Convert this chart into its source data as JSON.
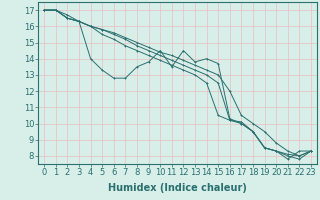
{
  "line1": {
    "x": [
      0,
      1,
      2,
      3,
      4,
      5,
      6,
      7,
      8,
      9,
      10,
      11,
      12,
      13,
      14,
      15,
      16,
      17,
      18,
      19,
      20,
      21,
      22,
      23
    ],
    "y": [
      17,
      17,
      16.7,
      16.3,
      16,
      15.8,
      15.6,
      15.3,
      15.0,
      14.7,
      14.4,
      14.2,
      13.9,
      13.6,
      13.3,
      13.0,
      12.0,
      10.5,
      10.0,
      9.5,
      8.8,
      8.3,
      8.0,
      8.3
    ]
  },
  "line2": {
    "x": [
      0,
      1,
      2,
      3,
      4,
      5,
      6,
      7,
      8,
      9,
      10,
      11,
      12,
      13,
      14,
      15,
      16,
      17,
      18,
      19,
      20,
      21,
      22,
      23
    ],
    "y": [
      17,
      17,
      16.5,
      16.3,
      14.0,
      13.3,
      12.8,
      12.8,
      13.5,
      13.8,
      14.5,
      13.5,
      14.5,
      13.8,
      14.0,
      13.7,
      10.3,
      10.0,
      9.5,
      8.5,
      8.3,
      7.8,
      8.3,
      8.3
    ]
  },
  "line3": {
    "x": [
      0,
      1,
      2,
      3,
      4,
      5,
      6,
      7,
      8,
      9,
      10,
      11,
      12,
      13,
      14,
      15,
      16,
      17,
      18,
      19,
      20,
      21,
      22,
      23
    ],
    "y": [
      17,
      17,
      16.5,
      16.3,
      16.0,
      15.8,
      15.5,
      15.2,
      14.8,
      14.5,
      14.2,
      13.9,
      13.6,
      13.3,
      13.0,
      12.5,
      10.2,
      10.1,
      9.5,
      8.5,
      8.3,
      8.1,
      8.0,
      8.3
    ]
  },
  "line4": {
    "x": [
      0,
      1,
      2,
      3,
      4,
      5,
      6,
      7,
      8,
      9,
      10,
      11,
      12,
      13,
      14,
      15,
      16,
      17,
      18,
      19,
      20,
      21,
      22,
      23
    ],
    "y": [
      17,
      17,
      16.5,
      16.3,
      16.0,
      15.5,
      15.2,
      14.8,
      14.5,
      14.2,
      13.9,
      13.6,
      13.3,
      13.0,
      12.5,
      10.5,
      10.2,
      10.0,
      9.5,
      8.5,
      8.3,
      8.0,
      7.8,
      8.3
    ]
  },
  "bg_color": "#d8eee8",
  "grid_color": "#e8c0c0",
  "line_color": "#2a7070",
  "xlabel": "Humidex (Indice chaleur)",
  "ylabel_ticks": [
    8,
    9,
    10,
    11,
    12,
    13,
    14,
    15,
    16,
    17
  ],
  "xlim": [
    -0.5,
    23.5
  ],
  "ylim": [
    7.5,
    17.5
  ],
  "xlabel_fontsize": 7,
  "tick_fontsize": 6,
  "figsize": [
    3.2,
    2.0
  ],
  "dpi": 100
}
